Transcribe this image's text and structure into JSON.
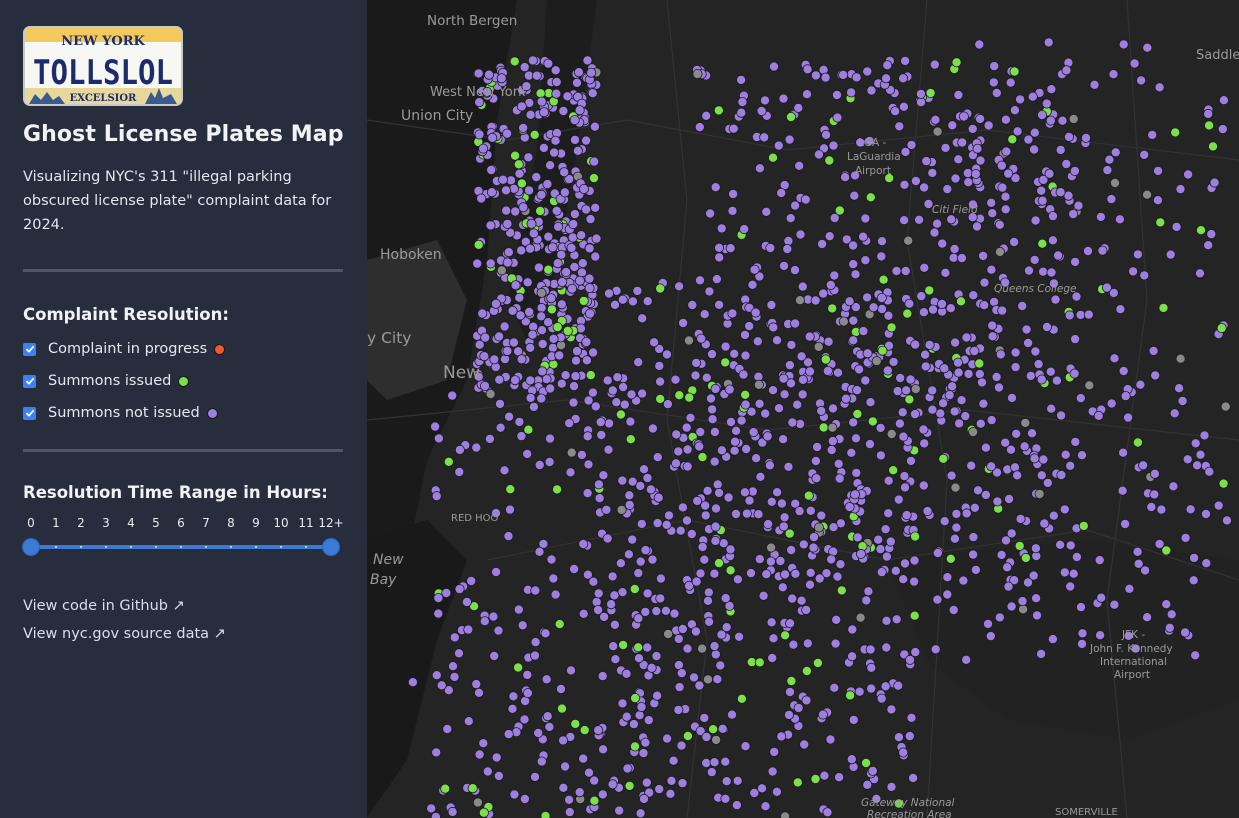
{
  "sidebar": {
    "logo": {
      "state": "NEW YORK",
      "plate": "TOLLSLOL",
      "motto": "EXCELSIOR"
    },
    "title": "Ghost License Plates Map",
    "description": "Visualizing NYC's 311 \"illegal parking obscured license plate\" complaint data for 2024.",
    "resolution": {
      "heading": "Complaint Resolution:",
      "items": [
        {
          "label": "Complaint in progress",
          "checked": true,
          "color": "#f15a24"
        },
        {
          "label": "Summons issued",
          "checked": true,
          "color": "#7ce04a"
        },
        {
          "label": "Summons not issued",
          "checked": true,
          "color": "#9d7fe0"
        }
      ]
    },
    "time_range": {
      "heading": "Resolution Time Range in Hours:",
      "ticks": [
        "0",
        "1",
        "2",
        "3",
        "4",
        "5",
        "6",
        "7",
        "8",
        "9",
        "10",
        "11",
        "12+"
      ],
      "range_min": 0,
      "range_max": 12
    },
    "links": {
      "github": "View code in Github ↗",
      "source": "View nyc.gov source data ↗"
    }
  },
  "map": {
    "labels": [
      {
        "text": "North Bergen"
      },
      {
        "text": "West New York"
      },
      {
        "text": "Union City"
      },
      {
        "text": "Hoboken"
      },
      {
        "text": "y City"
      },
      {
        "text": "New"
      },
      {
        "text": "New"
      },
      {
        "text": "Bay"
      },
      {
        "text": "RED HOO"
      },
      {
        "text": "Saddle"
      },
      {
        "text": "LGA -"
      },
      {
        "text": "LaGuardia"
      },
      {
        "text": "Airport"
      },
      {
        "text": "Citi Field"
      },
      {
        "text": "Queens College"
      },
      {
        "text": "JFK -"
      },
      {
        "text": "John F. Kennedy"
      },
      {
        "text": "International"
      },
      {
        "text": "Airport"
      },
      {
        "text": "Gateway National"
      },
      {
        "text": "Recreation Area"
      },
      {
        "text": "SOMERVILLE"
      }
    ],
    "colors": {
      "background": "#242424",
      "land": "#2b2b2b",
      "water": "#1a1a1a",
      "summons_issued": "#7ce04a",
      "summons_not_issued": "#9d7fe0",
      "in_progress": "#f15a24",
      "other": "#8a8a8a"
    }
  }
}
